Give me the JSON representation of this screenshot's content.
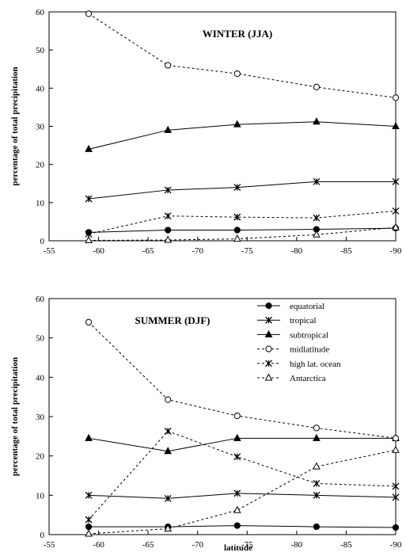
{
  "chart_data": [
    {
      "type": "line",
      "title": "WINTER (JJA)",
      "xlabel": "",
      "ylabel": "percentage of total precipitation",
      "x": [
        -59,
        -67,
        -74,
        -82,
        -90
      ],
      "xlim": [
        -55,
        -90
      ],
      "ylim": [
        0,
        60
      ],
      "xticks": [
        -55,
        -60,
        -65,
        -70,
        -75,
        -80,
        -85,
        -90
      ],
      "yticks": [
        0,
        10,
        20,
        30,
        40,
        50,
        60
      ],
      "grid": false,
      "series": [
        {
          "name": "equatorial",
          "values": [
            2.2,
            2.8,
            2.8,
            3.0,
            3.3
          ],
          "style": "solid",
          "marker": "filled-circle"
        },
        {
          "name": "tropical",
          "values": [
            11.0,
            13.3,
            14.0,
            15.5,
            15.5
          ],
          "style": "solid",
          "marker": "star"
        },
        {
          "name": "subtropical",
          "values": [
            24.0,
            29.0,
            30.5,
            31.2,
            30.0
          ],
          "style": "solid",
          "marker": "filled-triangle"
        },
        {
          "name": "midlatitude",
          "values": [
            59.5,
            46.0,
            43.8,
            40.3,
            37.5
          ],
          "style": "dashed",
          "marker": "open-circle"
        },
        {
          "name": "high lat. ocean",
          "values": [
            1.8,
            6.5,
            6.2,
            6.0,
            7.8
          ],
          "style": "dashed",
          "marker": "star"
        },
        {
          "name": "Antarctica",
          "values": [
            0.1,
            0.2,
            0.5,
            1.6,
            3.5
          ],
          "style": "dashed",
          "marker": "open-triangle"
        }
      ]
    },
    {
      "type": "line",
      "title": "SUMMER (DJF)",
      "xlabel": "latitude",
      "ylabel": "percentage of total precipitation",
      "x": [
        -59,
        -67,
        -74,
        -82,
        -90
      ],
      "xlim": [
        -55,
        -90
      ],
      "ylim": [
        0,
        60
      ],
      "xticks": [
        -55,
        -60,
        -65,
        -70,
        -75,
        -80,
        -85,
        -90
      ],
      "yticks": [
        0,
        10,
        20,
        30,
        40,
        50,
        60
      ],
      "grid": false,
      "legend_position": "top-right",
      "series": [
        {
          "name": "equatorial",
          "values": [
            2.0,
            2.0,
            2.3,
            2.0,
            1.8
          ],
          "style": "solid",
          "marker": "filled-circle"
        },
        {
          "name": "tropical",
          "values": [
            10.0,
            9.2,
            10.5,
            10.0,
            9.5
          ],
          "style": "solid",
          "marker": "star"
        },
        {
          "name": "subtropical",
          "values": [
            24.5,
            21.2,
            24.5,
            24.5,
            24.5
          ],
          "style": "solid",
          "marker": "filled-triangle"
        },
        {
          "name": "midlatitude",
          "values": [
            54.0,
            34.3,
            30.2,
            27.1,
            24.5
          ],
          "style": "dashed",
          "marker": "open-circle"
        },
        {
          "name": "high lat. ocean",
          "values": [
            3.8,
            26.3,
            19.8,
            13.0,
            12.3
          ],
          "style": "dashed",
          "marker": "star"
        },
        {
          "name": "Antarctica",
          "values": [
            0.2,
            1.5,
            6.2,
            17.3,
            21.5
          ],
          "style": "dashed",
          "marker": "open-triangle"
        }
      ]
    }
  ]
}
